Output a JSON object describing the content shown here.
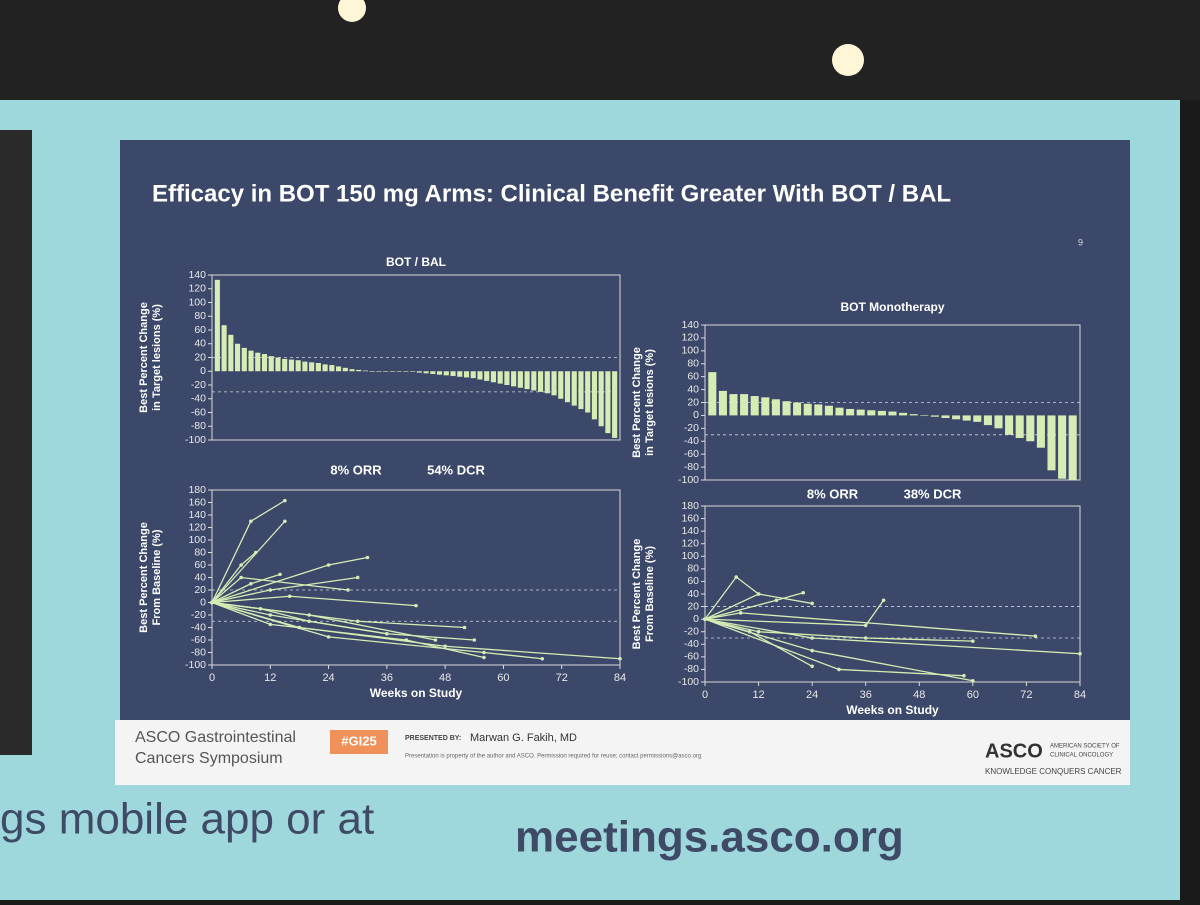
{
  "slide": {
    "title": "Efficacy in BOT 150 mg Arms: Clinical Benefit Greater With BOT / BAL",
    "page_number": "9",
    "footer": {
      "org_line1": "ASCO Gastrointestinal",
      "org_line2": "Cancers Symposium",
      "hashtag": "#GI25",
      "presented_by": "PRESENTED BY:",
      "presenter": "Marwan G. Fakih, MD",
      "notice": "Presentation is property of the author and ASCO. Permission required for reuse; contact permissions@asco.org",
      "asco": "ASCO",
      "asco_name": [
        "AMERICAN SOCIETY OF",
        "CLINICAL ONCOLOGY"
      ],
      "tagline": "KNOWLEDGE CONQUERS CANCER"
    },
    "banner": [
      "gs mobile app or at",
      "meetings.asco.org"
    ]
  },
  "chart_data": [
    {
      "type": "bar",
      "title": "BOT / BAL",
      "ylabel": [
        "Best Percent Change",
        "in Target lesions (%)"
      ],
      "ylim": [
        -100,
        140
      ],
      "yticks": [
        -100,
        -80,
        -60,
        -40,
        -20,
        0,
        20,
        40,
        60,
        80,
        100,
        120,
        140
      ],
      "reference_lines": [
        20,
        -30
      ],
      "color": "#d6ecb4",
      "values": [
        133,
        67,
        53,
        40,
        34,
        30,
        27,
        25,
        22,
        20,
        18,
        17,
        16,
        14,
        13,
        12,
        10,
        9,
        7,
        5,
        3,
        2,
        1,
        0,
        0,
        0,
        0,
        0,
        0,
        0,
        -2,
        -3,
        -4,
        -5,
        -6,
        -7,
        -8,
        -9,
        -10,
        -12,
        -14,
        -16,
        -18,
        -20,
        -22,
        -24,
        -26,
        -28,
        -30,
        -32,
        -35,
        -40,
        -45,
        -50,
        -55,
        -60,
        -70,
        -80,
        -90,
        -97
      ]
    },
    {
      "type": "bar",
      "title": "BOT Monotherapy",
      "ylabel": [
        "Best Percent Change",
        "in Target lesions (%)"
      ],
      "ylim": [
        -100,
        140
      ],
      "yticks": [
        -100,
        -80,
        -60,
        -40,
        -20,
        0,
        20,
        40,
        60,
        80,
        100,
        120,
        140
      ],
      "reference_lines": [
        20,
        -30
      ],
      "color": "#d6ecb4",
      "values": [
        67,
        38,
        33,
        33,
        30,
        28,
        25,
        22,
        20,
        18,
        17,
        15,
        12,
        10,
        9,
        8,
        7,
        6,
        4,
        2,
        0,
        -2,
        -4,
        -6,
        -8,
        -10,
        -15,
        -20,
        -30,
        -35,
        -40,
        -50,
        -85,
        -98,
        -100
      ]
    },
    {
      "type": "line",
      "annotations": [
        "8% ORR",
        "54% DCR"
      ],
      "ylabel": [
        "Best Percent Change",
        "From Baseline (%)"
      ],
      "xlabel": "Weeks on Study",
      "xlim": [
        0,
        84
      ],
      "xticks": [
        0,
        12,
        24,
        36,
        48,
        60,
        72,
        84
      ],
      "ylim": [
        -100,
        180
      ],
      "yticks": [
        -100,
        -80,
        -60,
        -40,
        -20,
        0,
        20,
        40,
        60,
        80,
        100,
        120,
        140,
        160,
        180
      ],
      "reference_lines": [
        20,
        -30
      ],
      "color": "#d6ecb4",
      "series": [
        {
          "x": [
            0,
            8,
            15
          ],
          "values": [
            0,
            130,
            163
          ]
        },
        {
          "x": [
            0,
            15
          ],
          "values": [
            0,
            130
          ]
        },
        {
          "x": [
            0,
            6,
            9
          ],
          "values": [
            0,
            60,
            80
          ]
        },
        {
          "x": [
            0,
            24,
            32
          ],
          "values": [
            0,
            60,
            72
          ]
        },
        {
          "x": [
            0,
            12,
            30
          ],
          "values": [
            0,
            20,
            40
          ]
        },
        {
          "x": [
            0,
            16,
            42
          ],
          "values": [
            0,
            10,
            -5
          ]
        },
        {
          "x": [
            0,
            12,
            36,
            54
          ],
          "values": [
            0,
            -20,
            -50,
            -60
          ]
        },
        {
          "x": [
            0,
            18,
            48,
            84
          ],
          "values": [
            0,
            -40,
            -70,
            -90
          ]
        },
        {
          "x": [
            0,
            24,
            56,
            68
          ],
          "values": [
            0,
            -55,
            -80,
            -90
          ]
        },
        {
          "x": [
            0,
            30,
            52
          ],
          "values": [
            0,
            -30,
            -40
          ]
        },
        {
          "x": [
            0,
            8,
            14
          ],
          "values": [
            0,
            30,
            45
          ]
        },
        {
          "x": [
            0,
            10,
            20,
            36
          ],
          "values": [
            0,
            -10,
            -30,
            -50
          ]
        },
        {
          "x": [
            0,
            20,
            46
          ],
          "values": [
            0,
            -20,
            -60
          ]
        },
        {
          "x": [
            0,
            6,
            28
          ],
          "values": [
            0,
            40,
            20
          ]
        },
        {
          "x": [
            0,
            12,
            40,
            56
          ],
          "values": [
            0,
            -35,
            -60,
            -88
          ]
        }
      ]
    },
    {
      "type": "line",
      "annotations": [
        "8% ORR",
        "38% DCR"
      ],
      "ylabel": [
        "Best Percent Change",
        "From Baseline (%)"
      ],
      "xlabel": "Weeks on Study",
      "xlim": [
        0,
        84
      ],
      "xticks": [
        0,
        12,
        24,
        36,
        48,
        60,
        72,
        84
      ],
      "ylim": [
        -100,
        180
      ],
      "yticks": [
        -100,
        -80,
        -60,
        -40,
        -20,
        0,
        20,
        40,
        60,
        80,
        100,
        120,
        140,
        160,
        180
      ],
      "reference_lines": [
        20,
        -30
      ],
      "color": "#d6ecb4",
      "series": [
        {
          "x": [
            0,
            7,
            12
          ],
          "values": [
            0,
            67,
            40
          ]
        },
        {
          "x": [
            0,
            12,
            24
          ],
          "values": [
            0,
            40,
            25
          ]
        },
        {
          "x": [
            0,
            36,
            40
          ],
          "values": [
            0,
            -10,
            30
          ]
        },
        {
          "x": [
            0,
            12,
            36,
            60
          ],
          "values": [
            0,
            -20,
            -30,
            -35
          ]
        },
        {
          "x": [
            0,
            24,
            84
          ],
          "values": [
            0,
            -30,
            -55
          ]
        },
        {
          "x": [
            0,
            8,
            74
          ],
          "values": [
            0,
            10,
            -27
          ]
        },
        {
          "x": [
            0,
            24,
            60
          ],
          "values": [
            0,
            -50,
            -98
          ]
        },
        {
          "x": [
            0,
            30,
            58
          ],
          "values": [
            0,
            -80,
            -90
          ]
        },
        {
          "x": [
            0,
            10,
            24
          ],
          "values": [
            0,
            -20,
            -75
          ]
        },
        {
          "x": [
            0,
            16,
            22
          ],
          "values": [
            0,
            30,
            42
          ]
        }
      ]
    }
  ]
}
